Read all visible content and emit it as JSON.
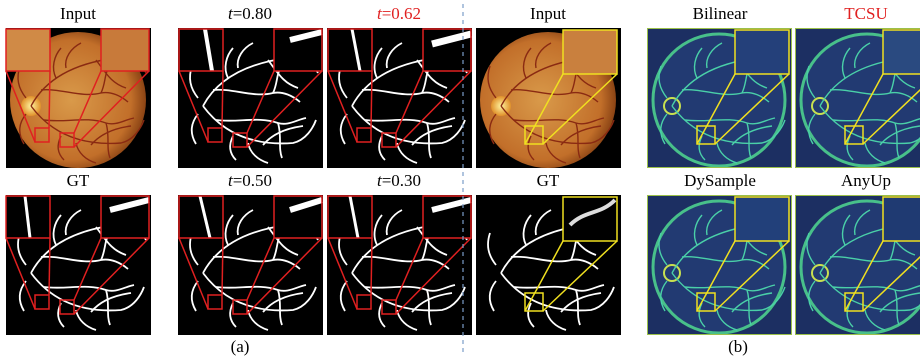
{
  "panel_a": {
    "label": "(a)",
    "top_row": [
      {
        "text": "Input"
      },
      {
        "italic": "t",
        "text": "=0.80"
      },
      {
        "italic": "t",
        "text": "=0.62"
      }
    ],
    "bottom_row": [
      {
        "text": "GT"
      },
      {
        "italic": "t",
        "text": "=0.50"
      },
      {
        "italic": "t",
        "text": "=0.30"
      }
    ]
  },
  "panel_b": {
    "label": "(b)",
    "top_row": [
      "Input",
      "Bilinear",
      "TCSU"
    ],
    "bottom_row": [
      "GT",
      "DySample",
      "AnyUp"
    ]
  }
}
